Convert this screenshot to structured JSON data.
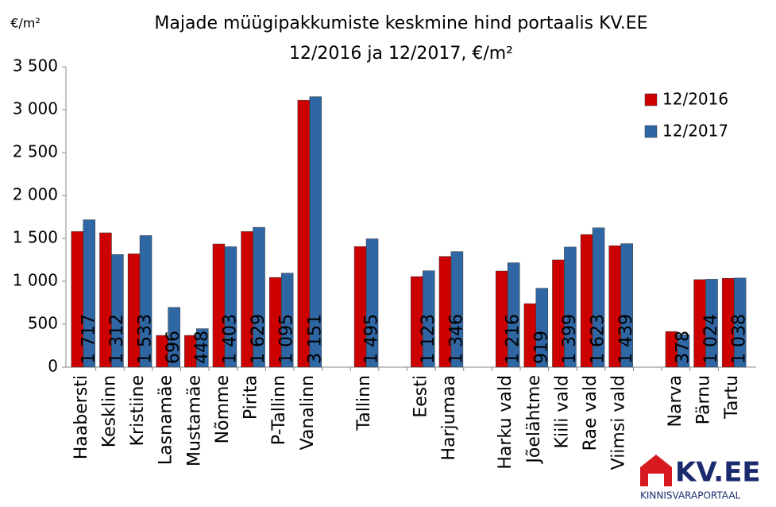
{
  "chart_data": {
    "type": "bar",
    "title": "Majade müügipakkumiste keskmine hind portaalis KV.EE",
    "subtitle": "12/2016 ja 12/2017, €/m²",
    "y_label": "€/m²",
    "categories": [
      "Haabersti",
      "Kesklinn",
      "Kristiine",
      "Lasnamäe",
      "Mustamäe",
      "Nõmme",
      "Pirita",
      "P-Tallinn",
      "Vanalinn",
      null,
      "Tallinn",
      null,
      "Eesti",
      "Harjumaa",
      null,
      "Harku vald",
      "Jõelähtme",
      "Kiili vald",
      "Rae vald",
      "Viimsi vald",
      null,
      "Narva",
      "Pärnu",
      "Tartu"
    ],
    "series": [
      {
        "name": "12/2016",
        "color": "#cc0000",
        "values": [
          1580,
          1565,
          1320,
          370,
          370,
          1435,
          1580,
          1045,
          3110,
          null,
          1405,
          null,
          1055,
          1290,
          null,
          1120,
          740,
          1250,
          1545,
          1415,
          null,
          415,
          1020,
          1035
        ]
      },
      {
        "name": "12/2017",
        "color": "#2f67a4",
        "values": [
          1717,
          1312,
          1533,
          696,
          448,
          1403,
          1629,
          1095,
          3151,
          null,
          1495,
          null,
          1123,
          1346,
          null,
          1216,
          919,
          1399,
          1623,
          1439,
          null,
          378,
          1024,
          1038
        ],
        "value_labels": [
          "1 717",
          "1 312",
          "1 533",
          "696",
          "448",
          "1 403",
          "1 629",
          "1 095",
          "3 151",
          null,
          "1 495",
          null,
          "1 123",
          "1 346",
          null,
          "1 216",
          "919",
          "1 399",
          "1 623",
          "1 439",
          null,
          "378",
          "1 024",
          "1 038"
        ]
      }
    ],
    "ylim": [
      0,
      3500
    ],
    "yticks": [
      0,
      {
        "value": 500,
        "label": "500"
      },
      {
        "value": 1000,
        "label": "1 000"
      },
      {
        "value": 1500,
        "label": "1 500"
      },
      {
        "value": 2000,
        "label": "2 000"
      },
      {
        "value": 2500,
        "label": "2 500"
      },
      {
        "value": 3000,
        "label": "3 000"
      },
      {
        "value": 3500,
        "label": "3 500"
      }
    ],
    "grid": false,
    "legend": "upper right"
  },
  "logo": {
    "name": "KV.EE",
    "tagline": "KINNISVARAPORTAAL"
  }
}
